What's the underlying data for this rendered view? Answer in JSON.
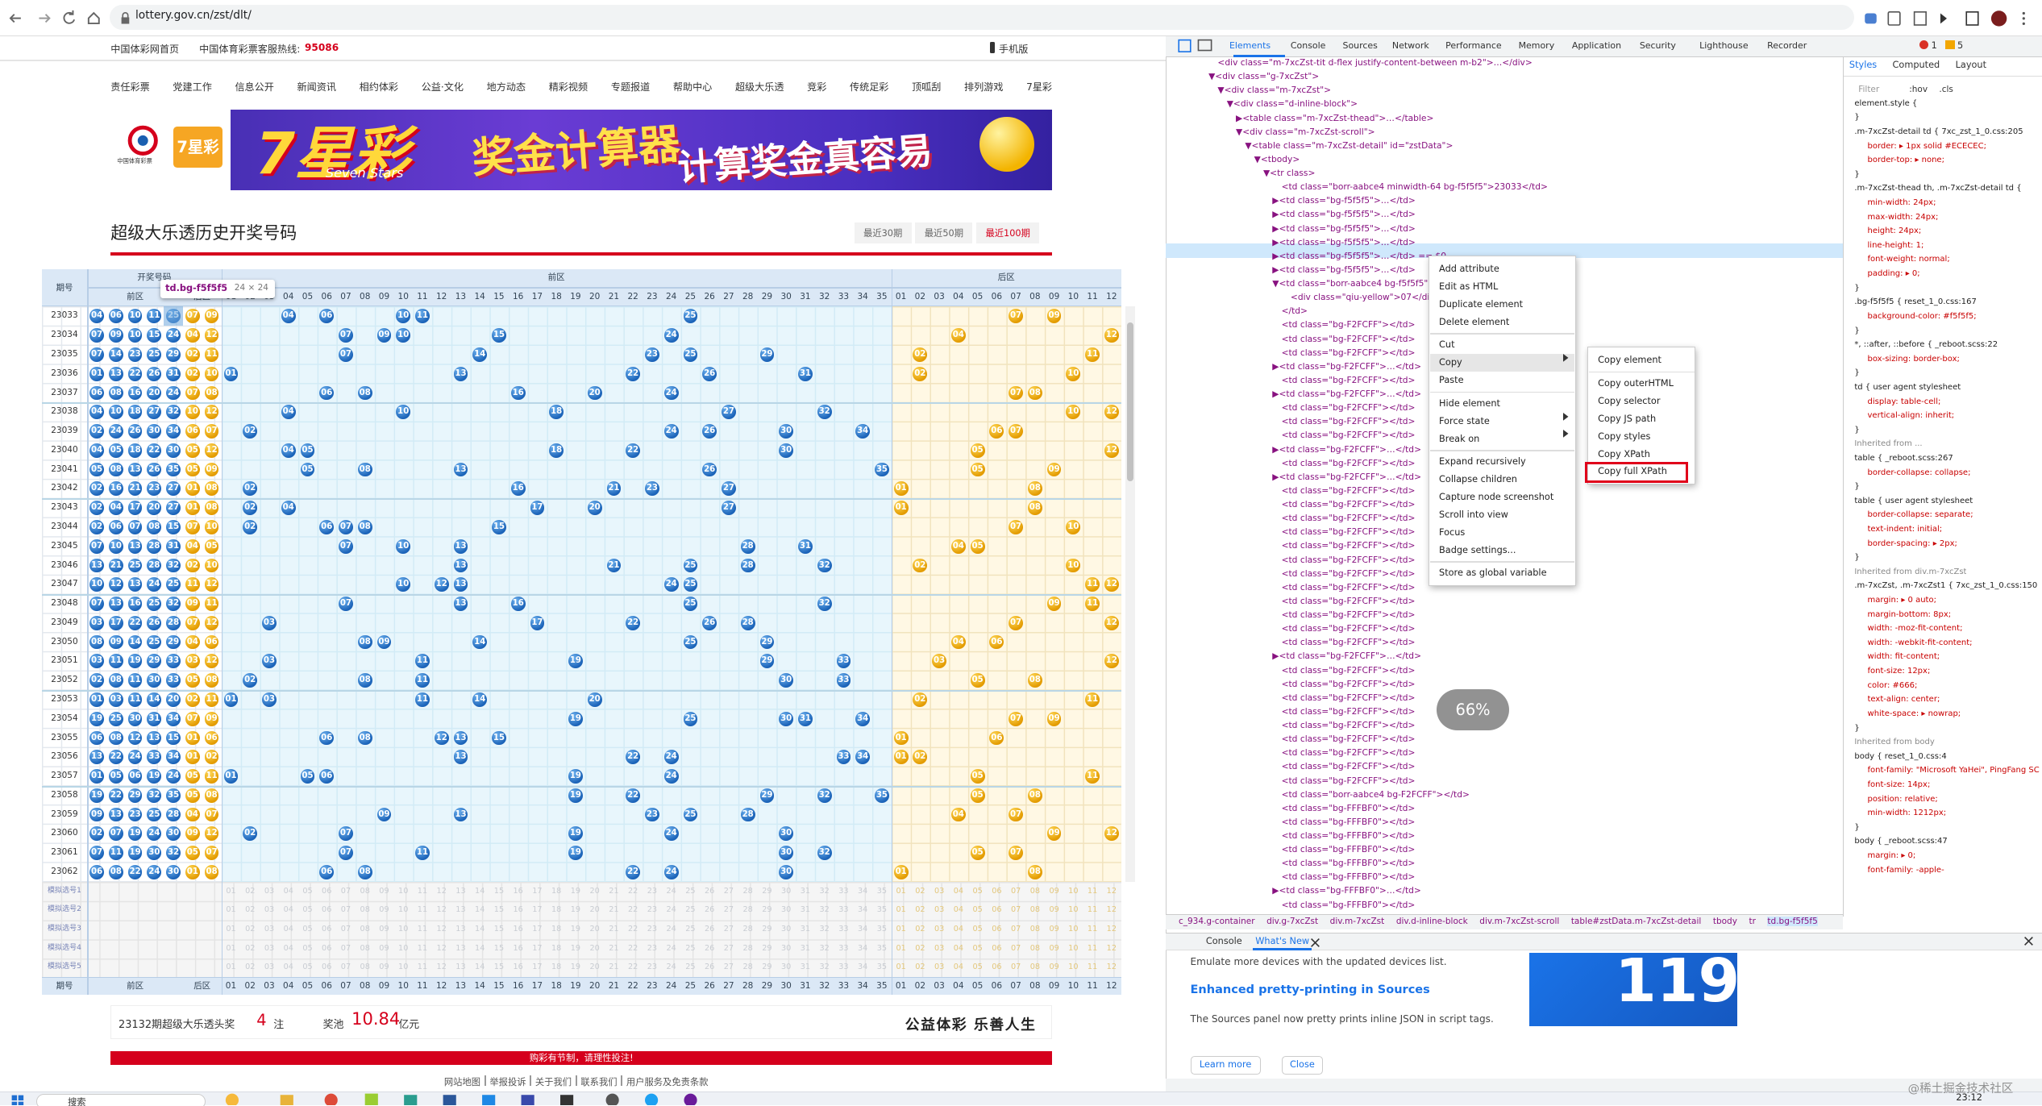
{
  "browser": {
    "url": "lottery.gov.cn/zst/dlt/"
  },
  "site": {
    "home": "中国体彩网首页",
    "hotline_label": "中国体育彩票客服热线:",
    "hotline": "95086",
    "mobile": "手机版",
    "nav": [
      "责任彩票",
      "党建工作",
      "信息公开",
      "新闻资讯",
      "相约体彩",
      "公益·文化",
      "地方动态",
      "精彩视频",
      "专题报道",
      "帮助中心",
      "超级大乐透",
      "竞彩",
      "传统足彩",
      "顶呱刮",
      "排列游戏",
      "7星彩"
    ],
    "banner": {
      "logo": "中国体育彩票",
      "brand": "7星彩",
      "brand_en": "Seven Stars",
      "headline": "奖金计算器",
      "slogan": "计算奖金真容易"
    },
    "title": "超级大乐透历史开奖号码",
    "tabs": [
      "最近30期",
      "最近50期",
      "最近100期"
    ]
  },
  "table": {
    "issue_header": "期号",
    "draw_header": "开奖号码",
    "front_header": "前区",
    "back_header": "后区",
    "front_numbers": [
      "01",
      "02",
      "03",
      "04",
      "05",
      "06",
      "07",
      "08",
      "09",
      "10",
      "11",
      "12",
      "13",
      "14",
      "15",
      "16",
      "17",
      "18",
      "19",
      "20",
      "21",
      "22",
      "23",
      "24",
      "25",
      "26",
      "27",
      "28",
      "29",
      "30",
      "31",
      "32",
      "33",
      "34",
      "35"
    ],
    "back_numbers": [
      "01",
      "02",
      "03",
      "04",
      "05",
      "06",
      "07",
      "08",
      "09",
      "10",
      "11",
      "12"
    ],
    "rows": [
      {
        "issue": "23033",
        "front": [
          "04",
          "06",
          "10",
          "11",
          "25"
        ],
        "back": [
          "07",
          "09"
        ]
      },
      {
        "issue": "23034",
        "front": [
          "07",
          "09",
          "10",
          "15",
          "24"
        ],
        "back": [
          "04",
          "12"
        ]
      },
      {
        "issue": "23035",
        "front": [
          "07",
          "14",
          "23",
          "25",
          "29"
        ],
        "back": [
          "02",
          "11"
        ]
      },
      {
        "issue": "23036",
        "front": [
          "01",
          "13",
          "22",
          "26",
          "31"
        ],
        "back": [
          "02",
          "10"
        ]
      },
      {
        "issue": "23037",
        "front": [
          "06",
          "08",
          "16",
          "20",
          "24"
        ],
        "back": [
          "07",
          "08"
        ]
      },
      {
        "issue": "23038",
        "front": [
          "04",
          "10",
          "18",
          "27",
          "32"
        ],
        "back": [
          "10",
          "12"
        ]
      },
      {
        "issue": "23039",
        "front": [
          "02",
          "24",
          "26",
          "30",
          "34"
        ],
        "back": [
          "06",
          "07"
        ]
      },
      {
        "issue": "23040",
        "front": [
          "04",
          "05",
          "18",
          "22",
          "30"
        ],
        "back": [
          "05",
          "12"
        ]
      },
      {
        "issue": "23041",
        "front": [
          "05",
          "08",
          "13",
          "26",
          "35"
        ],
        "back": [
          "05",
          "09"
        ]
      },
      {
        "issue": "23042",
        "front": [
          "02",
          "16",
          "21",
          "23",
          "27"
        ],
        "back": [
          "01",
          "08"
        ]
      },
      {
        "issue": "23043",
        "front": [
          "02",
          "04",
          "17",
          "20",
          "27"
        ],
        "back": [
          "01",
          "08"
        ]
      },
      {
        "issue": "23044",
        "front": [
          "02",
          "06",
          "07",
          "08",
          "15"
        ],
        "back": [
          "07",
          "10"
        ]
      },
      {
        "issue": "23045",
        "front": [
          "07",
          "10",
          "13",
          "28",
          "31"
        ],
        "back": [
          "04",
          "05"
        ]
      },
      {
        "issue": "23046",
        "front": [
          "13",
          "21",
          "25",
          "28",
          "32"
        ],
        "back": [
          "02",
          "10"
        ]
      },
      {
        "issue": "23047",
        "front": [
          "10",
          "12",
          "13",
          "24",
          "25"
        ],
        "back": [
          "11",
          "12"
        ]
      },
      {
        "issue": "23048",
        "front": [
          "07",
          "13",
          "16",
          "25",
          "32"
        ],
        "back": [
          "09",
          "11"
        ]
      },
      {
        "issue": "23049",
        "front": [
          "03",
          "17",
          "22",
          "26",
          "28"
        ],
        "back": [
          "07",
          "12"
        ]
      },
      {
        "issue": "23050",
        "front": [
          "08",
          "09",
          "14",
          "25",
          "29"
        ],
        "back": [
          "04",
          "06"
        ]
      },
      {
        "issue": "23051",
        "front": [
          "03",
          "11",
          "19",
          "29",
          "33"
        ],
        "back": [
          "03",
          "12"
        ]
      },
      {
        "issue": "23052",
        "front": [
          "02",
          "08",
          "11",
          "30",
          "33"
        ],
        "back": [
          "05",
          "08"
        ]
      },
      {
        "issue": "23053",
        "front": [
          "01",
          "03",
          "11",
          "14",
          "20"
        ],
        "back": [
          "02",
          "11"
        ]
      },
      {
        "issue": "23054",
        "front": [
          "19",
          "25",
          "30",
          "31",
          "34"
        ],
        "back": [
          "07",
          "09"
        ]
      },
      {
        "issue": "23055",
        "front": [
          "06",
          "08",
          "12",
          "13",
          "15"
        ],
        "back": [
          "01",
          "06"
        ]
      },
      {
        "issue": "23056",
        "front": [
          "13",
          "22",
          "24",
          "33",
          "34"
        ],
        "back": [
          "01",
          "02"
        ]
      },
      {
        "issue": "23057",
        "front": [
          "01",
          "05",
          "06",
          "19",
          "24"
        ],
        "back": [
          "05",
          "11"
        ]
      },
      {
        "issue": "23058",
        "front": [
          "19",
          "22",
          "29",
          "32",
          "35"
        ],
        "back": [
          "05",
          "08"
        ]
      },
      {
        "issue": "23059",
        "front": [
          "09",
          "13",
          "23",
          "25",
          "28"
        ],
        "back": [
          "04",
          "07"
        ]
      },
      {
        "issue": "23060",
        "front": [
          "02",
          "07",
          "19",
          "24",
          "30"
        ],
        "back": [
          "09",
          "12"
        ]
      },
      {
        "issue": "23061",
        "front": [
          "07",
          "11",
          "19",
          "30",
          "32"
        ],
        "back": [
          "05",
          "07"
        ]
      },
      {
        "issue": "23062",
        "front": [
          "06",
          "08",
          "22",
          "24",
          "30"
        ],
        "back": [
          "01",
          "08"
        ]
      }
    ],
    "sim_labels": [
      "模拟选号1",
      "模拟选号2",
      "模拟选号3",
      "模拟选号4",
      "模拟选号5"
    ]
  },
  "tooltip": {
    "selector": "td.bg-f5f5f5",
    "size": "24 × 24"
  },
  "summary": {
    "issue_text": "23132期超级大乐透头奖",
    "winners": "4",
    "winners_unit": "注",
    "pool_label": "奖池",
    "pool": "10.84",
    "pool_unit": "亿元",
    "motto": "公益体彩 乐善人生",
    "warning": "购彩有节制，请理性投注!",
    "footer_links": [
      "网站地图",
      "举报投诉",
      "关于我们",
      "联系我们",
      "用户服务及免责条款"
    ]
  },
  "devtools": {
    "tabs": [
      "Elements",
      "Console",
      "Sources",
      "Network",
      "Performance",
      "Memory",
      "Application",
      "Security",
      "Lighthouse",
      "Recorder"
    ],
    "error_count": "1",
    "warning_count": "5",
    "dom_lines": [
      "<div class=\"m-7xcZst-tit d-flex justify-content-between m-b2\">…</div>",
      "▼<div class=\"g-7xcZst\">",
      "▼<div class=\"m-7xcZst\">",
      "▼<div class=\"d-inline-block\">",
      "▶<table class=\"m-7xcZst-thead\">…</table>",
      "▼<div class=\"m-7xcZst-scroll\">",
      "▼<table class=\"m-7xcZst-detail\" id=\"zstData\">",
      "▼<tbody>",
      "▼<tr class>",
      "<td class=\"borr-aabce4 minwidth-64 bg-f5f5f5\">23033</td>",
      "▶<td class=\"bg-f5f5f5\">…</td>",
      "▶<td class=\"bg-f5f5f5\">…</td>",
      "▶<td class=\"bg-f5f5f5\">…</td>",
      "▶<td class=\"bg-f5f5f5\">…</td>",
      "▶<td class=\"bg-f5f5f5\">…</td> == $0",
      "▶<td class=\"bg-f5f5f5\">…</td>",
      "▼<td class=\"borr-aabce4 bg-f5f5f5\">",
      "<div class=\"qiu-yellow\">07</div>",
      "</td>",
      "<td class=\"bg-F2FCFF\"></td>",
      "<td class=\"bg-F2FCFF\"></td>",
      "<td class=\"bg-F2FCFF\"></td>",
      "▶<td class=\"bg-F2FCFF\">…</td>",
      "<td class=\"bg-F2FCFF\"></td>",
      "▶<td class=\"bg-F2FCFF\">…</td>",
      "<td class=\"bg-F2FCFF\"></td>",
      "<td class=\"bg-F2FCFF\"></td>",
      "<td class=\"bg-F2FCFF\"></td>",
      "▶<td class=\"bg-F2FCFF\">…</td>",
      "<td class=\"bg-F2FCFF\"></td>",
      "▶<td class=\"bg-F2FCFF\">…</td>",
      "<td class=\"bg-F2FCFF\"></td>",
      "<td class=\"bg-F2FCFF\"></td>",
      "<td class=\"bg-F2FCFF\"></td>",
      "<td class=\"bg-F2FCFF\"></td>",
      "<td class=\"bg-F2FCFF\"></td>",
      "<td class=\"bg-F2FCFF\"></td>",
      "<td class=\"bg-F2FCFF\"></td>",
      "<td class=\"bg-F2FCFF\"></td>",
      "<td class=\"bg-F2FCFF\"></td>",
      "<td class=\"bg-F2FCFF\"></td>",
      "<td class=\"bg-F2FCFF\"></td>",
      "<td class=\"bg-F2FCFF\"></td>",
      "▶<td class=\"bg-F2FCFF\">…</td>",
      "<td class=\"bg-F2FCFF\"></td>",
      "<td class=\"bg-F2FCFF\"></td>",
      "<td class=\"bg-F2FCFF\"></td>",
      "<td class=\"bg-F2FCFF\"></td>",
      "<td class=\"bg-F2FCFF\"></td>",
      "<td class=\"bg-F2FCFF\"></td>",
      "<td class=\"bg-F2FCFF\"></td>",
      "<td class=\"bg-F2FCFF\"></td>",
      "<td class=\"bg-F2FCFF\"></td>",
      "<td class=\"borr-aabce4 bg-F2FCFF\"></td>",
      "<td class=\"bg-FFFBF0\"></td>",
      "<td class=\"bg-FFFBF0\"></td>",
      "<td class=\"bg-FFFBF0\"></td>",
      "<td class=\"bg-FFFBF0\"></td>",
      "<td class=\"bg-FFFBF0\"></td>",
      "<td class=\"bg-FFFBF0\"></td>",
      "▶<td class=\"bg-FFFBF0\">…</td>",
      "<td class=\"bg-FFFBF0\"></td>"
    ],
    "breadcrumb": [
      "c_934.g-container",
      "div.g-7xcZst",
      "div.m-7xcZst",
      "div.d-inline-block",
      "div.m-7xcZst-scroll",
      "table#zstData.m-7xcZst-detail",
      "tbody",
      "tr",
      "td.bg-f5f5f5"
    ],
    "context_menu": [
      [
        "Add attribute",
        "Edit as HTML",
        "Duplicate element",
        "Delete element"
      ],
      [
        "Cut",
        "Copy",
        "Paste"
      ],
      [
        "Hide element",
        "Force state",
        "Break on"
      ],
      [
        "Expand recursively",
        "Collapse children",
        "Capture node screenshot",
        "Scroll into view",
        "Focus",
        "Badge settings..."
      ],
      [
        "Store as global variable"
      ]
    ],
    "copy_menu": [
      [
        "Copy element"
      ],
      [
        "Copy outerHTML",
        "Copy selector",
        "Copy JS path",
        "Copy styles",
        "Copy XPath",
        "Copy full XPath"
      ]
    ],
    "zoom": "66%",
    "styles_tabs": [
      "Styles",
      "Computed",
      "Layout"
    ],
    "filter": "Filter",
    "hov": ":hov",
    "cls": ".cls",
    "style_lines": [
      "element.style {",
      "}",
      ".m-7xcZst-detail td {   7xc_zst_1_0.css:205",
      "border: ▸ 1px solid #ECECEC;",
      "border-top: ▸ none;",
      "}",
      ".m-7xcZst-thead th, .m-7xcZst-detail td {",
      "min-width: 24px;",
      "max-width: 24px;",
      "height: 24px;",
      "line-height: 1;",
      "font-weight: normal;",
      "padding: ▸ 0;",
      "}",
      ".bg-f5f5f5 {   reset_1_0.css:167",
      "background-color: #f5f5f5;",
      "}",
      "*, ::after, ::before {   _reboot.scss:22",
      "box-sizing: border-box;",
      "}",
      "td {   user agent stylesheet",
      "display: table-cell;",
      "vertical-align: inherit;",
      "}",
      "Inherited from ...",
      "table {   _reboot.scss:267",
      "border-collapse: collapse;",
      "}",
      "table {   user agent stylesheet",
      "border-collapse: separate;",
      "text-indent: initial;",
      "border-spacing: ▸ 2px;",
      "}",
      "Inherited from div.m-7xcZst",
      ".m-7xcZst, .m-7xcZst1 {   7xc_zst_1_0.css:150",
      "margin: ▸ 0 auto;",
      "margin-bottom: 8px;",
      "width: -moz-fit-content;",
      "width: -webkit-fit-content;",
      "width: fit-content;",
      "font-size: 12px;",
      "color: #666;",
      "text-align: center;",
      "white-space: ▸ nowrap;",
      "}",
      "Inherited from body",
      "body {   reset_1_0.css:4",
      "font-family: \"Microsoft YaHei\", PingFang SC, Arial;",
      "font-size: 14px;",
      "position: relative;",
      "min-width: 1212px;",
      "}",
      "body {   _reboot.scss:47",
      "margin: ▸ 0;",
      "font-family: -apple-"
    ],
    "drawer": {
      "tabs": [
        "Console",
        "What's New"
      ],
      "intro": "Emulate more devices with the updated devices list.",
      "heading": "Enhanced pretty-printing in Sources",
      "body": "The Sources panel now pretty prints inline JSON in script tags.",
      "learn_more": "Learn more",
      "close": "Close",
      "badge": "119"
    }
  },
  "taskbar": {
    "search": "搜索",
    "time": "23:12",
    "watermark": "@稀土掘金技术社区"
  }
}
